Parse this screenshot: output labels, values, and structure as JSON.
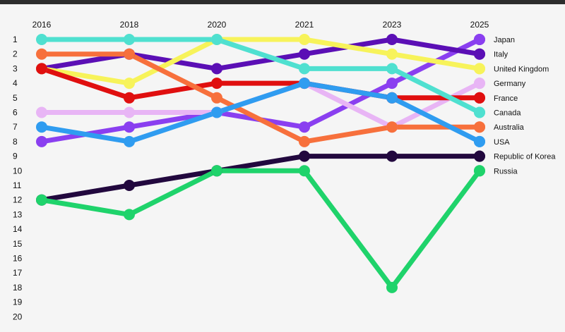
{
  "chart_data": {
    "type": "line",
    "title": "",
    "xlabel": "",
    "ylabel": "",
    "x": [
      "2016",
      "2018",
      "2020",
      "2021",
      "2023",
      "2025"
    ],
    "ylim": [
      1,
      20
    ],
    "y_inverted": true,
    "y_ticks": [
      1,
      2,
      3,
      4,
      5,
      6,
      7,
      8,
      9,
      10,
      11,
      12,
      13,
      14,
      15,
      16,
      17,
      18,
      19,
      20
    ],
    "legend_position": "right",
    "series": [
      {
        "name": "Japan",
        "color": "#8a3ff0",
        "values": [
          8,
          7,
          6,
          7,
          4,
          1
        ]
      },
      {
        "name": "Italy",
        "color": "#5b0fb5",
        "values": [
          3,
          2,
          3,
          2,
          1,
          2
        ]
      },
      {
        "name": "United Kingdom",
        "color": "#f7f35a",
        "values": [
          3,
          4,
          1,
          1,
          2,
          3
        ]
      },
      {
        "name": "Germany",
        "color": "#e8b5f5",
        "values": [
          6,
          6,
          6,
          4,
          7,
          4
        ]
      },
      {
        "name": "France",
        "color": "#e00f0f",
        "values": [
          3,
          5,
          4,
          4,
          5,
          5
        ]
      },
      {
        "name": "Canada",
        "color": "#4fe0d0",
        "values": [
          1,
          1,
          1,
          3,
          3,
          6
        ]
      },
      {
        "name": "Australia",
        "color": "#f7703c",
        "values": [
          2,
          2,
          5,
          8,
          7,
          7
        ]
      },
      {
        "name": "USA",
        "color": "#2f9cf0",
        "values": [
          7,
          8,
          6,
          4,
          5,
          8
        ]
      },
      {
        "name": "Republic of Korea",
        "color": "#22083e",
        "values": [
          12,
          11,
          10,
          9,
          9,
          9
        ]
      },
      {
        "name": "Russia",
        "color": "#1fd36b",
        "values": [
          12,
          13,
          10,
          10,
          18,
          10
        ]
      }
    ]
  }
}
